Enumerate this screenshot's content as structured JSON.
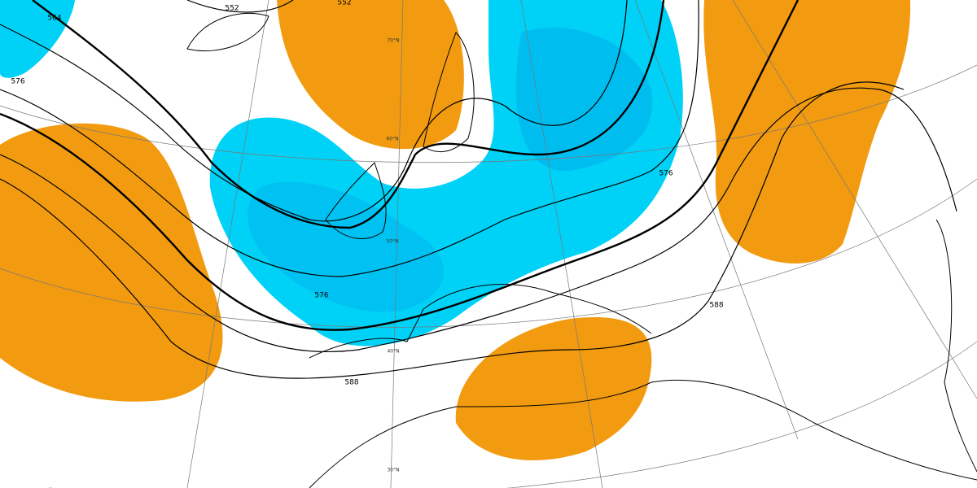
{
  "contour_labels": [
    "552",
    "552",
    "564",
    "576",
    "576",
    "588",
    "576",
    "588"
  ],
  "latitude_labels": [
    "70°N",
    "60°N",
    "50°N",
    "40°N",
    "30°N"
  ]
}
